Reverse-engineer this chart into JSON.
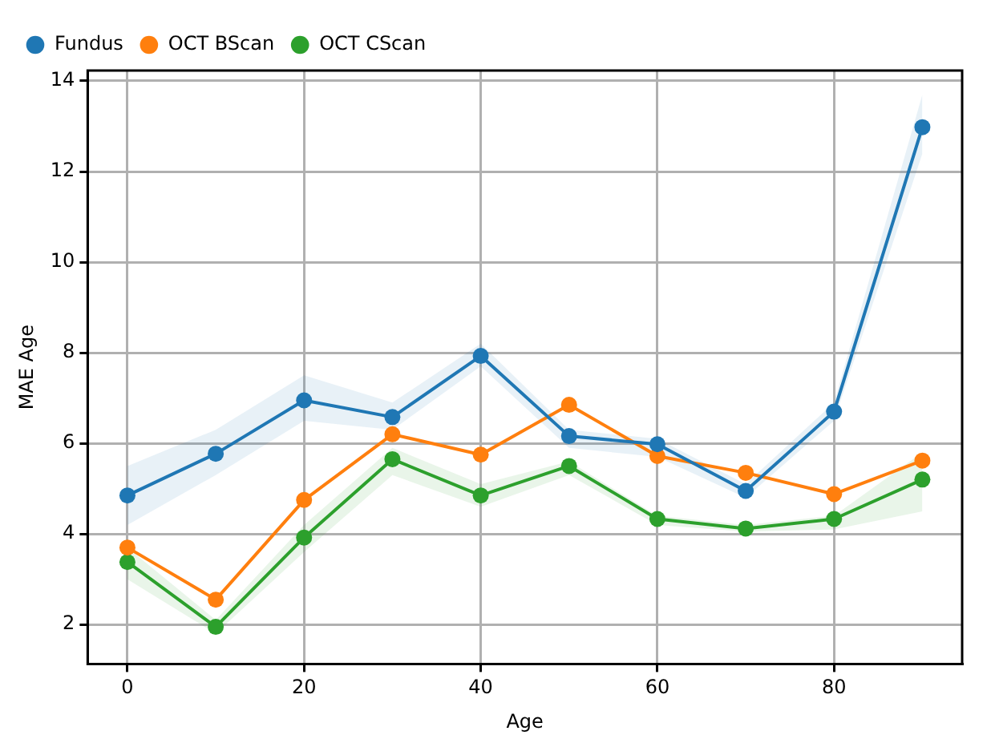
{
  "chart_data": {
    "type": "line",
    "xlabel": "Age",
    "ylabel": "MAE Age",
    "x": [
      0,
      10,
      20,
      30,
      40,
      50,
      60,
      70,
      80,
      90
    ],
    "series": [
      {
        "name": "Fundus",
        "color": "#1f77b4",
        "values": [
          4.85,
          5.77,
          6.95,
          6.58,
          7.93,
          6.16,
          5.98,
          4.95,
          6.7,
          12.98
        ],
        "lower": [
          4.2,
          5.3,
          6.5,
          6.3,
          7.7,
          5.9,
          5.7,
          4.8,
          6.5,
          12.4
        ],
        "upper": [
          5.5,
          6.3,
          7.5,
          6.9,
          8.2,
          6.3,
          6.1,
          5.1,
          6.9,
          13.7
        ]
      },
      {
        "name": "OCT BScan",
        "color": "#ff7f0e",
        "values": [
          3.7,
          2.55,
          4.75,
          6.2,
          5.75,
          6.85,
          5.72,
          5.35,
          4.88,
          5.62
        ]
      },
      {
        "name": "OCT CScan",
        "color": "#2ca02c",
        "values": [
          3.38,
          1.95,
          3.92,
          5.65,
          4.85,
          5.5,
          4.33,
          4.12,
          4.33,
          5.2
        ],
        "lower": [
          3.0,
          1.8,
          3.6,
          5.3,
          4.6,
          5.3,
          4.2,
          4.05,
          4.1,
          4.5
        ],
        "upper": [
          3.7,
          2.1,
          4.2,
          5.9,
          5.1,
          5.6,
          4.4,
          4.2,
          4.4,
          5.8
        ]
      }
    ],
    "xlim": [
      -4.5,
      94.5
    ],
    "xticks": [
      0,
      20,
      40,
      60,
      80
    ],
    "ylim": [
      1.13,
      14.23
    ],
    "yticks": [
      2,
      4,
      6,
      8,
      10,
      12,
      14
    ],
    "grid": true,
    "legend": "top left",
    "marker": "circle",
    "line_style": "solid"
  }
}
